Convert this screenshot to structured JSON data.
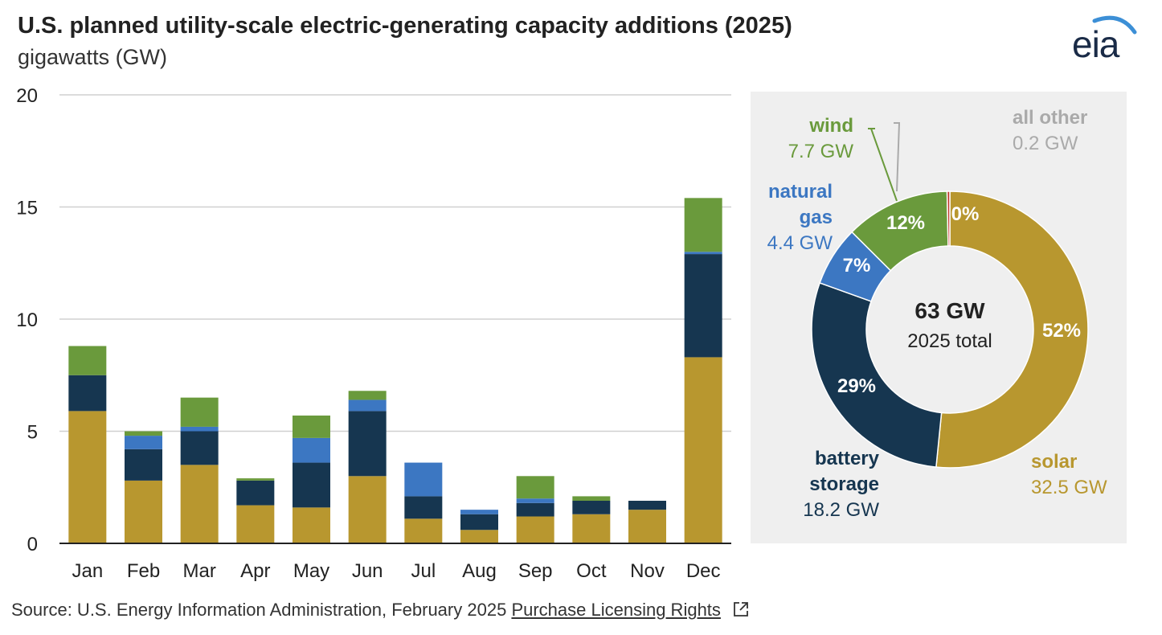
{
  "title": "U.S. planned utility-scale electric-generating capacity additions (2025)",
  "subtitle": "gigawatts (GW)",
  "logo_text": "eia",
  "source": {
    "text": "Source: U.S. Energy Information Administration, February 2025",
    "link_label": "Purchase Licensing Rights",
    "icon": "external-link-icon"
  },
  "colors": {
    "solar": "#b8972f",
    "battery storage": "#163650",
    "natural gas": "#3c77c2",
    "wind": "#6a9a3c",
    "all other": "#aaaaaa",
    "grid": "#d0d0d0",
    "axis": "#222222"
  },
  "chart_data": [
    {
      "type": "bar",
      "stacked": true,
      "categories": [
        "Jan",
        "Feb",
        "Mar",
        "Apr",
        "May",
        "Jun",
        "Jul",
        "Aug",
        "Sep",
        "Oct",
        "Nov",
        "Dec"
      ],
      "ylim": [
        0,
        20
      ],
      "yticks": [
        0,
        5,
        10,
        15,
        20
      ],
      "grid": true,
      "series": [
        {
          "name": "solar",
          "values": [
            5.9,
            2.8,
            3.5,
            1.7,
            1.6,
            3.0,
            1.1,
            0.6,
            1.2,
            1.3,
            1.5,
            8.3
          ]
        },
        {
          "name": "battery storage",
          "values": [
            1.6,
            1.4,
            1.5,
            1.1,
            2.0,
            2.9,
            1.0,
            0.7,
            0.6,
            0.6,
            0.4,
            4.6
          ]
        },
        {
          "name": "natural gas",
          "values": [
            0.0,
            0.6,
            0.2,
            0.0,
            1.1,
            0.5,
            1.5,
            0.2,
            0.2,
            0.0,
            0.0,
            0.1
          ]
        },
        {
          "name": "wind",
          "values": [
            1.3,
            0.2,
            1.3,
            0.1,
            1.0,
            0.4,
            0.0,
            0.0,
            1.0,
            0.2,
            0.0,
            2.4
          ]
        },
        {
          "name": "all other",
          "values": [
            0,
            0,
            0,
            0,
            0,
            0,
            0,
            0,
            0,
            0,
            0,
            0
          ]
        }
      ]
    },
    {
      "type": "pie",
      "donut": true,
      "center_value": "63 GW",
      "center_label": "2025 total",
      "slices": [
        {
          "name": "solar",
          "label_lines": [
            "solar"
          ],
          "value": 32.5,
          "value_label": "32.5 GW",
          "percent": "52%"
        },
        {
          "name": "battery storage",
          "label_lines": [
            "battery",
            "storage"
          ],
          "value": 18.2,
          "value_label": "18.2 GW",
          "percent": "29%"
        },
        {
          "name": "natural gas",
          "label_lines": [
            "natural",
            "gas"
          ],
          "value": 4.4,
          "value_label": "4.4 GW",
          "percent": "7%"
        },
        {
          "name": "wind",
          "label_lines": [
            "wind"
          ],
          "value": 7.7,
          "value_label": "7.7 GW",
          "percent": "12%"
        },
        {
          "name": "all other",
          "label_lines": [
            "all other"
          ],
          "value": 0.2,
          "value_label": "0.2 GW",
          "percent": "0%"
        }
      ]
    }
  ]
}
